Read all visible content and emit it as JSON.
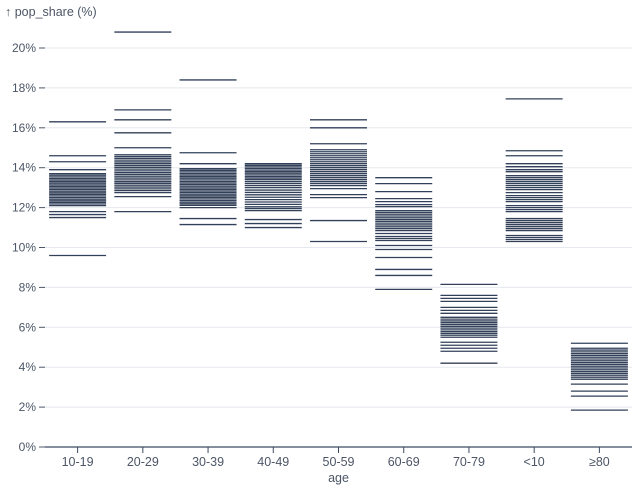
{
  "chart": {
    "colors": {
      "mark": "#33405a",
      "grid": "#e5e8ee",
      "axis": "#3c4a61",
      "text": "#4c5666",
      "background": "#ffffff"
    }
  },
  "chart_data": {
    "type": "tick",
    "title": "",
    "ylabel_title": "↑ pop_share (%)",
    "ylabel": "pop_share (%)",
    "xlabel": "age",
    "ylim": [
      0,
      21.5
    ],
    "y_ticks": [
      0,
      2,
      4,
      6,
      8,
      10,
      12,
      14,
      16,
      18,
      20
    ],
    "y_tick_suffix": "%",
    "grid": true,
    "categories": [
      "10-19",
      "20-29",
      "30-39",
      "40-49",
      "50-59",
      "60-69",
      "70-79",
      "<10",
      "≥80"
    ],
    "series": [
      {
        "name": "10-19",
        "values": [
          16.3,
          14.6,
          14.3,
          13.9,
          13.7,
          13.62,
          13.54,
          13.46,
          13.38,
          13.3,
          13.22,
          13.14,
          13.06,
          12.98,
          12.9,
          12.82,
          12.74,
          12.66,
          12.58,
          12.5,
          12.42,
          12.34,
          12.26,
          12.18,
          12.1,
          11.8,
          11.65,
          11.5,
          9.6
        ]
      },
      {
        "name": "20-29",
        "values": [
          20.8,
          16.9,
          16.4,
          15.75,
          15.0,
          14.65,
          14.56,
          14.47,
          14.38,
          14.29,
          14.2,
          14.11,
          14.02,
          13.93,
          13.84,
          13.75,
          13.66,
          13.57,
          13.48,
          13.39,
          13.3,
          13.21,
          13.12,
          13.03,
          12.94,
          12.85,
          12.75,
          12.55,
          11.8
        ]
      },
      {
        "name": "30-39",
        "values": [
          18.4,
          14.75,
          14.2,
          13.95,
          13.87,
          13.79,
          13.71,
          13.63,
          13.55,
          13.47,
          13.39,
          13.31,
          13.23,
          13.15,
          13.07,
          12.99,
          12.91,
          12.83,
          12.75,
          12.67,
          12.59,
          12.51,
          12.43,
          12.35,
          12.27,
          12.19,
          12.11,
          12.0,
          11.45,
          11.15
        ]
      },
      {
        "name": "40-49",
        "values": [
          14.2,
          14.12,
          14.04,
          13.96,
          13.88,
          13.8,
          13.72,
          13.64,
          13.56,
          13.48,
          13.4,
          13.3,
          13.2,
          13.1,
          13.0,
          12.88,
          12.76,
          12.64,
          12.52,
          12.4,
          12.28,
          12.16,
          12.04,
          11.95,
          11.85,
          11.4,
          11.2,
          11.0
        ]
      },
      {
        "name": "50-59",
        "values": [
          16.4,
          16.0,
          15.2,
          14.9,
          14.8,
          14.7,
          14.6,
          14.5,
          14.4,
          14.3,
          14.2,
          14.1,
          14.0,
          13.9,
          13.8,
          13.7,
          13.6,
          13.5,
          13.4,
          13.3,
          13.2,
          13.1,
          12.95,
          12.65,
          12.5,
          11.35,
          10.3
        ]
      },
      {
        "name": "60-69",
        "values": [
          13.5,
          13.2,
          12.8,
          12.45,
          12.3,
          12.15,
          12.05,
          11.85,
          11.76,
          11.67,
          11.58,
          11.49,
          11.4,
          11.31,
          11.22,
          11.13,
          11.04,
          10.95,
          10.85,
          10.7,
          10.55,
          10.45,
          10.35,
          10.1,
          9.9,
          9.5,
          8.9,
          8.6,
          7.9
        ]
      },
      {
        "name": "70-79",
        "values": [
          8.15,
          7.6,
          7.45,
          7.3,
          7.0,
          6.85,
          6.7,
          6.5,
          6.41,
          6.32,
          6.23,
          6.14,
          6.05,
          5.96,
          5.87,
          5.78,
          5.69,
          5.6,
          5.5,
          5.25,
          5.1,
          4.95,
          4.8,
          4.2
        ]
      },
      {
        "name": "<10",
        "values": [
          17.45,
          14.85,
          14.6,
          14.2,
          14.05,
          13.9,
          13.8,
          13.6,
          13.5,
          13.4,
          13.3,
          13.2,
          13.1,
          13.0,
          12.9,
          12.75,
          12.6,
          12.5,
          12.4,
          12.3,
          12.1,
          12.0,
          11.9,
          11.8,
          11.45,
          11.35,
          11.25,
          11.15,
          11.05,
          10.95,
          10.85,
          10.6,
          10.5,
          10.4,
          10.3
        ]
      },
      {
        "name": "≥80",
        "values": [
          5.2,
          4.95,
          4.86,
          4.77,
          4.68,
          4.59,
          4.5,
          4.41,
          4.32,
          4.23,
          4.14,
          4.05,
          3.96,
          3.87,
          3.78,
          3.69,
          3.6,
          3.5,
          3.4,
          3.15,
          2.8,
          2.55,
          1.85
        ]
      }
    ],
    "legend": null
  }
}
